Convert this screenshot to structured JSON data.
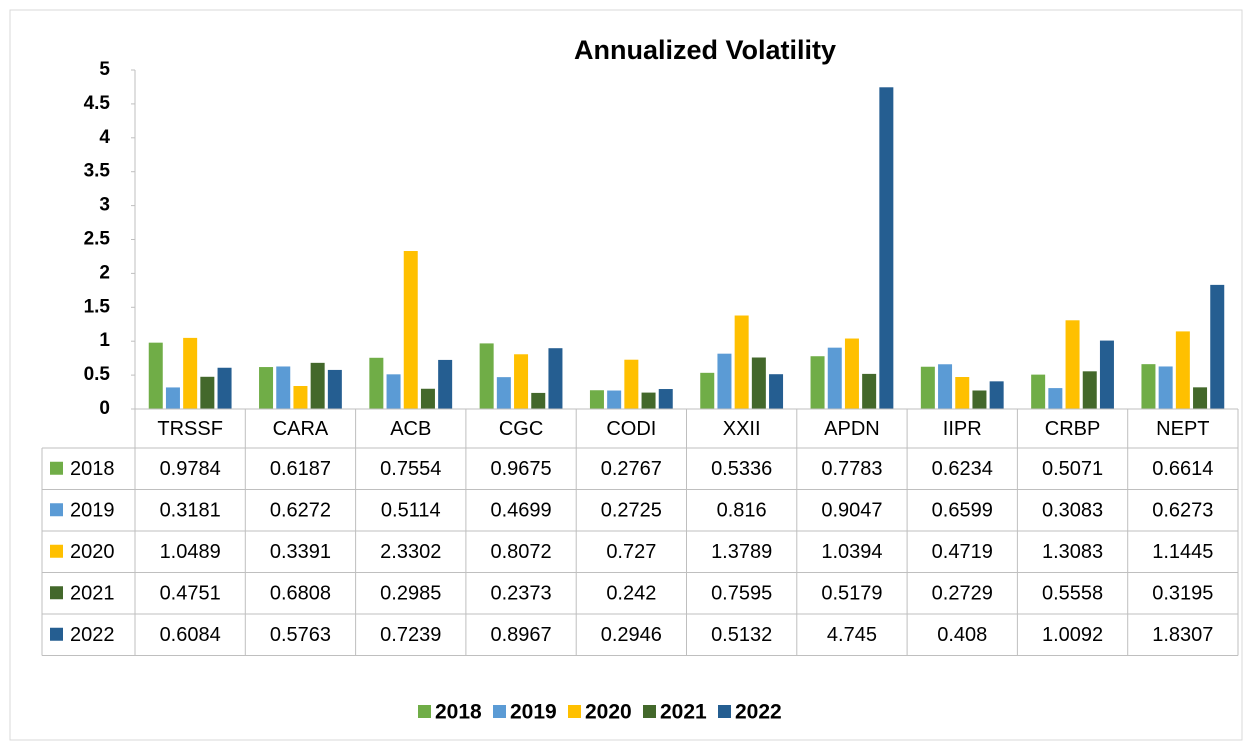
{
  "chart_data": {
    "type": "bar",
    "title": "Annualized Volatility",
    "categories": [
      "TRSSF",
      "CARA",
      "ACB",
      "CGC",
      "CODI",
      "XXII",
      "APDN",
      "IIPR",
      "CRBP",
      "NEPT"
    ],
    "series": [
      {
        "name": "2018",
        "color": "#70ad47",
        "values": [
          0.9784,
          0.6187,
          0.7554,
          0.9675,
          0.2767,
          0.5336,
          0.7783,
          0.6234,
          0.5071,
          0.6614
        ]
      },
      {
        "name": "2019",
        "color": "#5b9bd5",
        "values": [
          0.3181,
          0.6272,
          0.5114,
          0.4699,
          0.2725,
          0.816,
          0.9047,
          0.6599,
          0.3083,
          0.6273
        ]
      },
      {
        "name": "2020",
        "color": "#ffc000",
        "values": [
          1.0489,
          0.3391,
          2.3302,
          0.8072,
          0.727,
          1.3789,
          1.0394,
          0.4719,
          1.3083,
          1.1445
        ]
      },
      {
        "name": "2021",
        "color": "#43682b",
        "values": [
          0.4751,
          0.6808,
          0.2985,
          0.2373,
          0.242,
          0.7595,
          0.5179,
          0.2729,
          0.5558,
          0.3195
        ]
      },
      {
        "name": "2022",
        "color": "#255e91",
        "values": [
          0.6084,
          0.5763,
          0.7239,
          0.8967,
          0.2946,
          0.5132,
          4.745,
          0.408,
          1.0092,
          1.8307
        ]
      }
    ],
    "ylim": [
      0,
      5
    ],
    "yticks": [
      0,
      0.5,
      1,
      1.5,
      2,
      2.5,
      3,
      3.5,
      4,
      4.5,
      5
    ],
    "legend": "bottom",
    "data_table": true
  }
}
